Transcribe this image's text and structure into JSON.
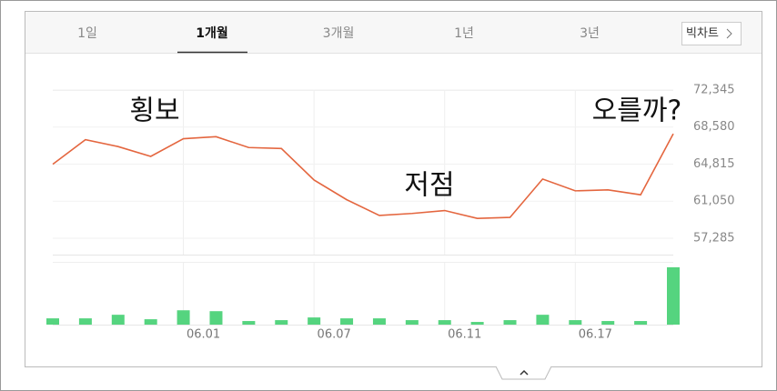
{
  "tabs": [
    "1일",
    "1개월",
    "3개월",
    "1년",
    "3년"
  ],
  "big_chart_button": "빅차트",
  "chart_data": [
    {
      "type": "line",
      "color": "#e4663f",
      "annotations": [
        "횡보",
        "저점",
        "오를까?"
      ],
      "values": [
        64800,
        67300,
        66600,
        65600,
        67400,
        67600,
        66500,
        66400,
        63200,
        61200,
        59600,
        59800,
        60100,
        59300,
        59400,
        63300,
        62100,
        62200,
        61700,
        67900
      ],
      "ylim": [
        55620,
        72345
      ],
      "yticks": [
        {
          "value": 72345,
          "label": "72,345"
        },
        {
          "value": 68580,
          "label": "68,580"
        },
        {
          "value": 64815,
          "label": "64,815"
        },
        {
          "value": 61050,
          "label": "61,050"
        },
        {
          "value": 57285,
          "label": "57,285"
        }
      ],
      "grid": true
    },
    {
      "type": "bar",
      "color": "#55d47f",
      "categories": [
        null,
        null,
        null,
        null,
        "06.01",
        null,
        null,
        null,
        "06.07",
        null,
        null,
        null,
        "06.11",
        null,
        null,
        null,
        "06.17",
        null,
        null,
        null
      ],
      "values": [
        7,
        7,
        11,
        6,
        16,
        15,
        4,
        5,
        8,
        7,
        7,
        5,
        5,
        3,
        5,
        11,
        5,
        4,
        4,
        64
      ],
      "ylim": [
        0,
        70
      ]
    }
  ]
}
